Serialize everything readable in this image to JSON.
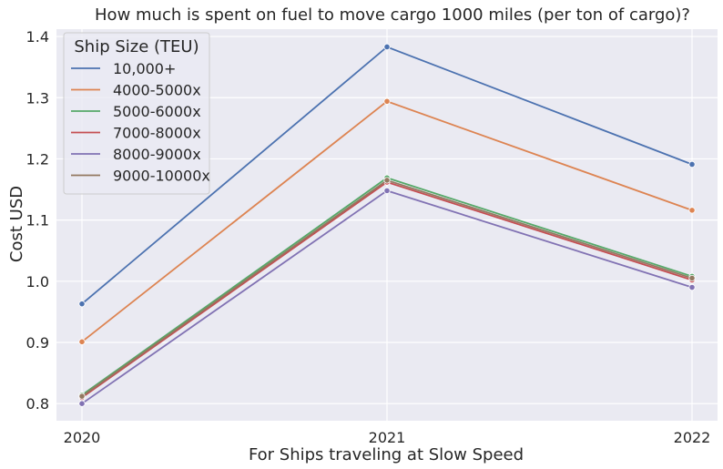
{
  "chart_data": {
    "type": "line",
    "title": "How much is spent on fuel to move cargo 1000 miles (per ton of cargo)?",
    "xlabel": "For Ships traveling at Slow Speed",
    "ylabel": "Cost USD",
    "x": [
      "2020",
      "2021",
      "2022"
    ],
    "ylim": [
      0.772,
      1.412
    ],
    "yticks": [
      0.8,
      0.9,
      1.0,
      1.1,
      1.2,
      1.3,
      1.4
    ],
    "ytick_labels": [
      "0.8",
      "0.9",
      "1.0",
      "1.1",
      "1.2",
      "1.3",
      "1.4"
    ],
    "grid": true,
    "legend": {
      "title": "Ship Size (TEU)",
      "placement": "top-left"
    },
    "series": [
      {
        "name": "10,000+",
        "color": "#4c72b0",
        "values": [
          0.963,
          1.383,
          1.191
        ]
      },
      {
        "name": "4000-5000x",
        "color": "#dd8452",
        "values": [
          0.901,
          1.294,
          1.116
        ]
      },
      {
        "name": "5000-6000x",
        "color": "#55a868",
        "values": [
          0.814,
          1.169,
          1.008
        ]
      },
      {
        "name": "7000-8000x",
        "color": "#c44e52",
        "values": [
          0.81,
          1.162,
          1.002
        ]
      },
      {
        "name": "8000-9000x",
        "color": "#8172b3",
        "values": [
          0.8,
          1.148,
          0.99
        ]
      },
      {
        "name": "9000-10000x",
        "color": "#937860",
        "values": [
          0.812,
          1.165,
          1.005
        ]
      }
    ]
  }
}
